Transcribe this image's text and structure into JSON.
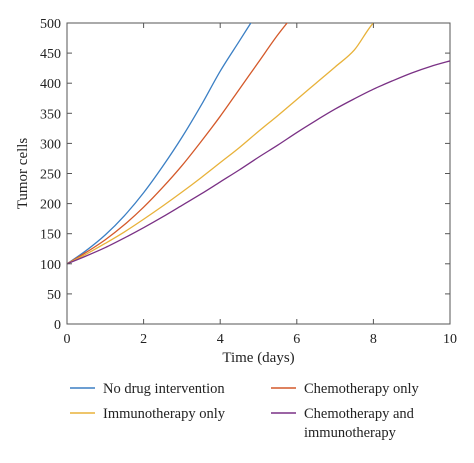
{
  "chart_data": {
    "type": "line",
    "xlabel": "Time (days)",
    "ylabel": "Tumor cells",
    "xlim": [
      0,
      10
    ],
    "ylim": [
      0,
      500
    ],
    "xticks": [
      0,
      2,
      4,
      6,
      8,
      10
    ],
    "yticks": [
      0,
      50,
      100,
      150,
      200,
      250,
      300,
      350,
      400,
      450,
      500
    ],
    "grid": false,
    "legend_position": "bottom",
    "series": [
      {
        "name": "No drug intervention",
        "color": "#3b7fc4",
        "x": [
          0,
          0.5,
          1,
          1.5,
          2,
          2.5,
          3,
          3.5,
          4,
          4.5,
          5
        ],
        "y": [
          100,
          122,
          148,
          180,
          218,
          262,
          310,
          363,
          420,
          470,
          520
        ]
      },
      {
        "name": "Chemotherapy only",
        "color": "#d4592a",
        "x": [
          0,
          0.5,
          1,
          1.5,
          2,
          2.5,
          3,
          3.5,
          4,
          4.5,
          5,
          5.5,
          6
        ],
        "y": [
          100,
          119,
          140,
          165,
          194,
          227,
          263,
          303,
          345,
          390,
          435,
          480,
          520
        ]
      },
      {
        "name": "Immunotherapy only",
        "color": "#e8b23a",
        "x": [
          0,
          0.5,
          1,
          1.5,
          2,
          2.5,
          3,
          3.5,
          4,
          4.5,
          5,
          5.5,
          6,
          6.5,
          7,
          7.5,
          8,
          8.5
        ],
        "y": [
          100,
          116,
          134,
          153,
          174,
          196,
          219,
          243,
          268,
          293,
          320,
          346,
          373,
          400,
          427,
          455,
          500,
          520
        ]
      },
      {
        "name": "Chemotherapy and\nimmunotherapy",
        "color": "#7a3185",
        "x": [
          0,
          0.5,
          1,
          1.5,
          2,
          2.5,
          3,
          3.5,
          4,
          4.5,
          5,
          5.5,
          6,
          6.5,
          7,
          7.5,
          8,
          8.5,
          9,
          9.5,
          10
        ],
        "y": [
          100,
          113,
          127,
          143,
          160,
          178,
          197,
          216,
          236,
          256,
          277,
          297,
          318,
          338,
          357,
          374,
          390,
          404,
          417,
          428,
          437
        ]
      }
    ]
  }
}
